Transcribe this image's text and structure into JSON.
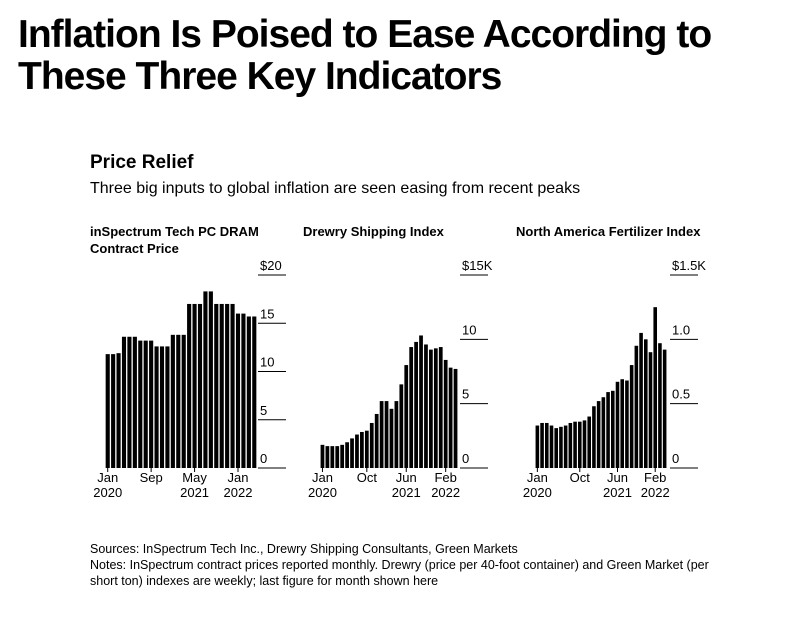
{
  "title": "Inflation Is Poised to Ease According to These Three Key Indicators",
  "subtitle": "Price Relief",
  "description": "Three big inputs to global inflation are seen easing from recent peaks",
  "sources": "Sources: InSpectrum Tech Inc., Drewry Shipping Consultants, Green Markets",
  "notes": "Notes: InSpectrum contract prices reported monthly. Drewry (price per 40-foot container) and Green Market (per short ton) indexes are weekly; last figure for month shown here",
  "chart_data": [
    {
      "type": "bar",
      "title": "inSpectrum Tech PC DRAM Contract Price",
      "color": "#000000",
      "categories": [
        "Jan 2020",
        null,
        null,
        null,
        null,
        null,
        null,
        null,
        "Sep",
        null,
        null,
        null,
        null,
        null,
        null,
        null,
        "May 2021",
        null,
        null,
        null,
        null,
        null,
        null,
        null,
        "Jan 2022",
        null,
        null,
        null
      ],
      "values": [
        11.8,
        11.8,
        11.9,
        13.6,
        13.6,
        13.6,
        13.2,
        13.2,
        13.2,
        12.6,
        12.6,
        12.6,
        13.8,
        13.8,
        13.8,
        17,
        17,
        17,
        18.3,
        18.3,
        17,
        17,
        17,
        17,
        16,
        16,
        15.7,
        15.7
      ],
      "ylim": [
        0,
        20
      ],
      "yticks": [
        0,
        5,
        10,
        15,
        {
          "value": 20,
          "label": "$20"
        }
      ]
    },
    {
      "type": "bar",
      "title": "Drewry Shipping Index",
      "color": "#000000",
      "categories": [
        "Jan 2020",
        null,
        null,
        null,
        null,
        null,
        null,
        null,
        null,
        "Oct",
        null,
        null,
        null,
        null,
        null,
        null,
        null,
        "Jun 2021",
        null,
        null,
        null,
        null,
        null,
        null,
        null,
        "Feb 2022",
        null,
        null
      ],
      "values": [
        1.8,
        1.7,
        1.7,
        1.7,
        1.8,
        2.0,
        2.3,
        2.6,
        2.8,
        2.9,
        3.5,
        4.2,
        5.2,
        5.2,
        4.6,
        5.2,
        6.5,
        8.0,
        9.4,
        9.8,
        10.3,
        9.6,
        9.2,
        9.3,
        9.4,
        8.4,
        7.8,
        7.7
      ],
      "ylim": [
        0,
        15
      ],
      "yticks": [
        0,
        5,
        10,
        {
          "value": 15,
          "label": "$15K"
        }
      ]
    },
    {
      "type": "bar",
      "title": "North America Fertilizer Index",
      "color": "#000000",
      "categories": [
        "Jan 2020",
        null,
        null,
        null,
        null,
        null,
        null,
        null,
        null,
        "Oct",
        null,
        null,
        null,
        null,
        null,
        null,
        null,
        "Jun 2021",
        null,
        null,
        null,
        null,
        null,
        null,
        null,
        "Feb 2022",
        null,
        null
      ],
      "values": [
        0.33,
        0.35,
        0.35,
        0.33,
        0.31,
        0.32,
        0.33,
        0.35,
        0.36,
        0.36,
        0.37,
        0.4,
        0.48,
        0.52,
        0.55,
        0.59,
        0.6,
        0.67,
        0.69,
        0.68,
        0.8,
        0.95,
        1.05,
        1.0,
        0.9,
        1.25,
        0.97,
        0.92
      ],
      "ylim": [
        0,
        1.5
      ],
      "yticks": [
        0,
        {
          "value": 0.5,
          "label": "0.5"
        },
        {
          "value": 1.0,
          "label": "1.0"
        },
        {
          "value": 1.5,
          "label": "$1.5K"
        }
      ]
    }
  ]
}
